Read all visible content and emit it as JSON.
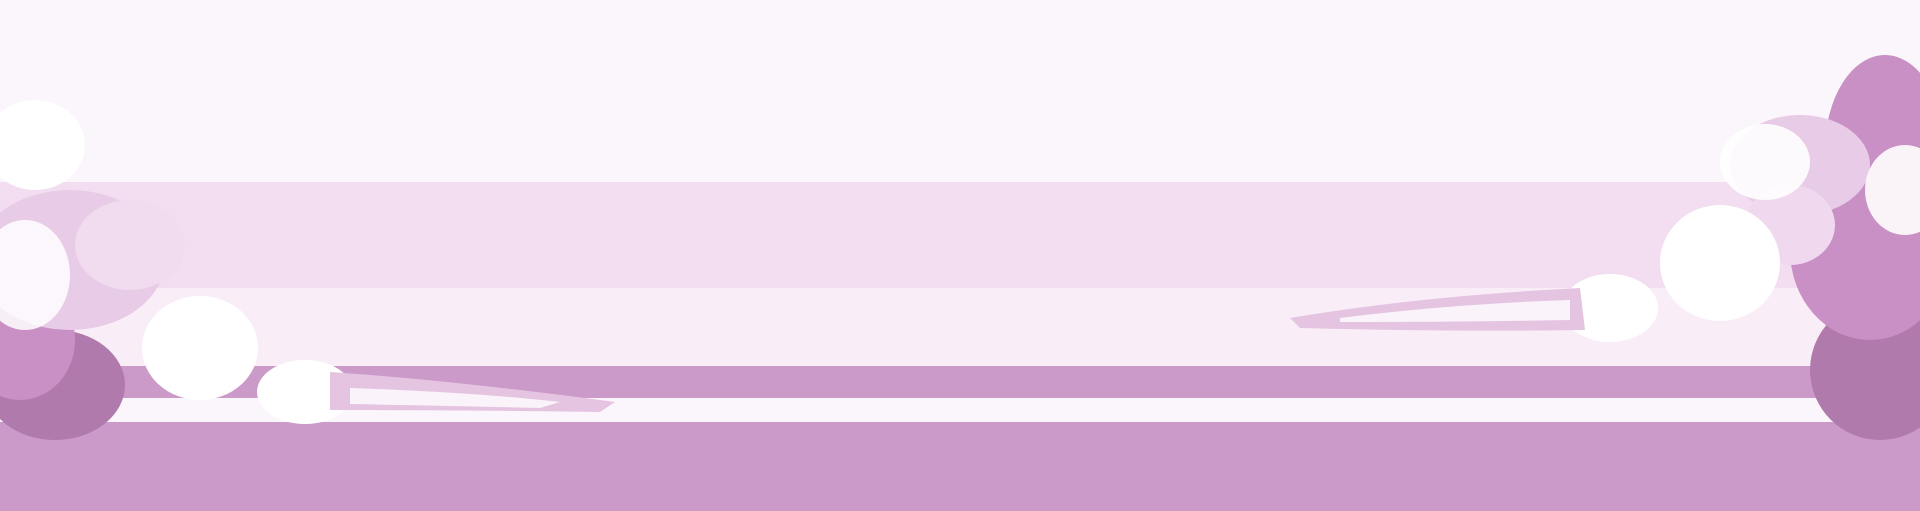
{
  "scene": {
    "description_free": true,
    "colors": {
      "background": "#fbf6fb",
      "band_light": "#f3ddf1",
      "band_pale": "#f9eef8",
      "band_deep": "#cc9ac8",
      "cloud_white": "#ffffff",
      "cloud_shadow": "#e8cbe6",
      "cloud_purple": "#c890c4",
      "cloud_dark": "#b07aac"
    },
    "icons": [
      "cloud-left",
      "cloud-right"
    ]
  }
}
